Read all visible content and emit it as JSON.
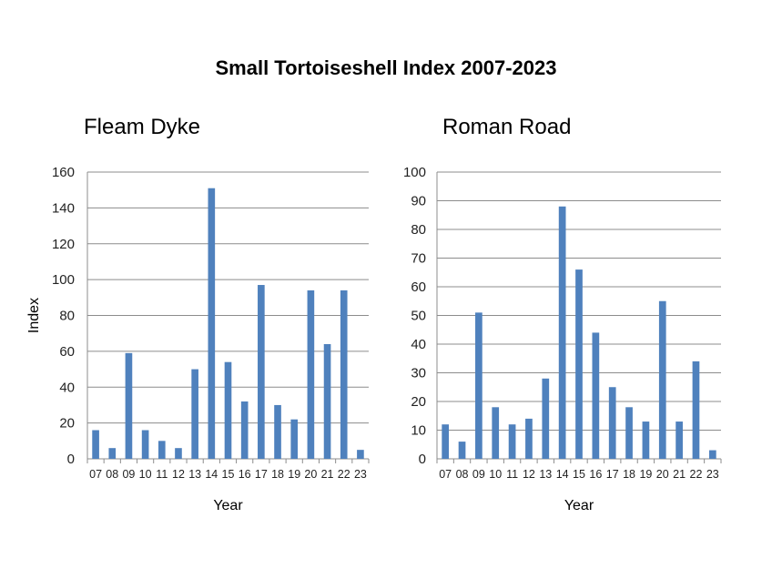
{
  "title": "Small Tortoiseshell Index 2007-2023",
  "colors": {
    "bar": "#4f81bd",
    "grid": "#8c8c8c",
    "axis": "#8c8c8c",
    "text": "#000000"
  },
  "chart_data": [
    {
      "type": "bar",
      "title": "Fleam Dyke",
      "xlabel": "Year",
      "ylabel": "Index",
      "categories": [
        "07",
        "08",
        "09",
        "10",
        "11",
        "12",
        "13",
        "14",
        "15",
        "16",
        "17",
        "18",
        "19",
        "20",
        "21",
        "22",
        "23"
      ],
      "values": [
        16,
        6,
        59,
        16,
        10,
        6,
        50,
        151,
        54,
        32,
        97,
        30,
        22,
        94,
        64,
        94,
        5
      ],
      "ylim": [
        0,
        160
      ],
      "yticks": [
        0,
        20,
        40,
        60,
        80,
        100,
        120,
        140,
        160
      ],
      "grid": true,
      "legend": "none"
    },
    {
      "type": "bar",
      "title": "Roman Road",
      "xlabel": "Year",
      "ylabel": "",
      "categories": [
        "07",
        "08",
        "09",
        "10",
        "11",
        "12",
        "13",
        "14",
        "15",
        "16",
        "17",
        "18",
        "19",
        "20",
        "21",
        "22",
        "23"
      ],
      "values": [
        12,
        6,
        51,
        18,
        12,
        14,
        28,
        88,
        66,
        44,
        25,
        18,
        13,
        55,
        13,
        34,
        3
      ],
      "ylim": [
        0,
        100
      ],
      "yticks": [
        0,
        10,
        20,
        30,
        40,
        50,
        60,
        70,
        80,
        90,
        100
      ],
      "grid": true,
      "legend": "none"
    }
  ]
}
